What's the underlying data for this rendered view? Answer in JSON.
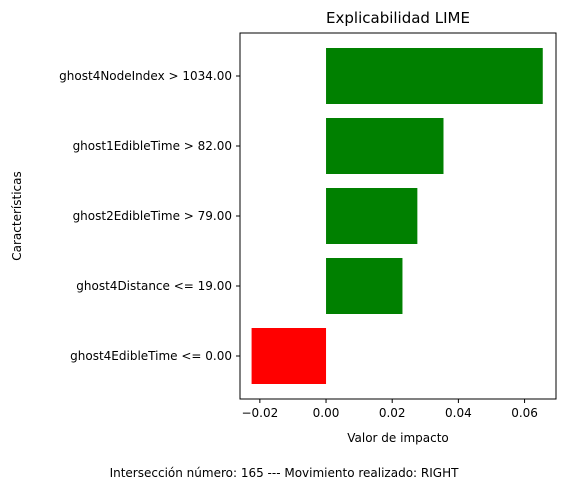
{
  "chart_data": {
    "type": "bar",
    "orientation": "horizontal",
    "title": "Explicabilidad LIME",
    "xlabel": "Valor de impacto",
    "ylabel": "Características",
    "xlim": [
      -0.026,
      0.0695
    ],
    "xticks": [
      -0.02,
      0.0,
      0.02,
      0.04,
      0.06
    ],
    "xtick_labels": [
      "−0.02",
      "0.00",
      "0.02",
      "0.04",
      "0.06"
    ],
    "categories": [
      "ghost4NodeIndex > 1034.00",
      "ghost1EdibleTime > 82.00",
      "ghost2EdibleTime > 79.00",
      "ghost4Distance <= 19.00",
      "ghost4EdibleTime <= 0.00"
    ],
    "values": [
      0.0655,
      0.0355,
      0.0276,
      0.0231,
      -0.0225
    ],
    "positive_color": "#008000",
    "negative_color": "#ff0000",
    "grid": false,
    "legend": "none"
  },
  "footer": {
    "text": "Intersección número: 165 --- Movimiento realizado: RIGHT"
  }
}
